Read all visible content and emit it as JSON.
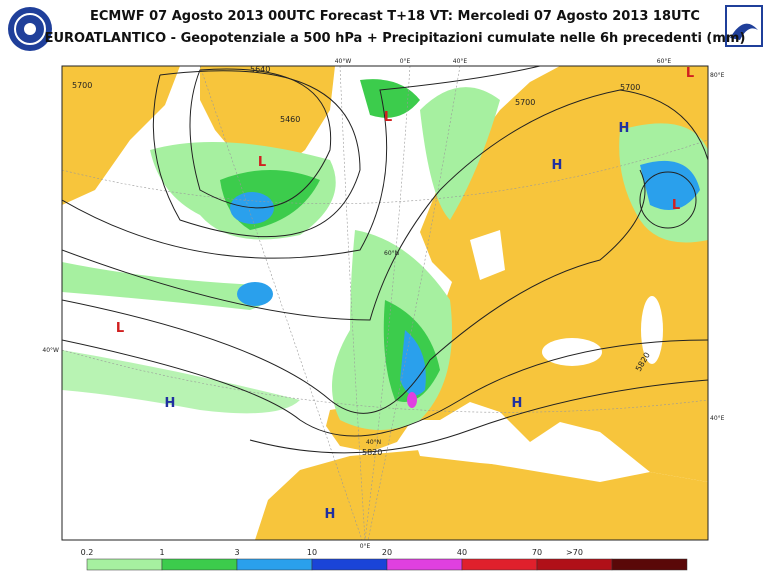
{
  "header": {
    "title_line1": "ECMWF 07 Agosto 2013 00UTC Forecast T+18 VT: Mercoledi 07 Agosto 2013 18UTC",
    "title_line2": "EUROATLANTICO - Geopotenziale a 500 hPa + Precipitazioni cumulate nelle 6h precedenti (mm)"
  },
  "map": {
    "pressure_centers": [
      "L",
      "L",
      "L",
      "L",
      "L",
      "H",
      "H",
      "H",
      "H",
      "H"
    ],
    "contour_labels": [
      "5640",
      "5460",
      "5700",
      "5700",
      "5820",
      "5820",
      "5700"
    ],
    "grid_labels": [
      "40°W",
      "0°E",
      "40°E",
      "60°E",
      "80°E",
      "40°W",
      "40°E",
      "0°E",
      "60°N",
      "40°N"
    ]
  },
  "legend": {
    "labels": [
      "0.2",
      "1",
      "3",
      "10",
      "20",
      "40",
      "70",
      ">70"
    ],
    "colors": [
      "#a6f0a0",
      "#3ccc4c",
      "#2aa0ec",
      "#1a44d8",
      "#e040e0",
      "#e0202c",
      "#b01018",
      "#5a0808"
    ]
  }
}
